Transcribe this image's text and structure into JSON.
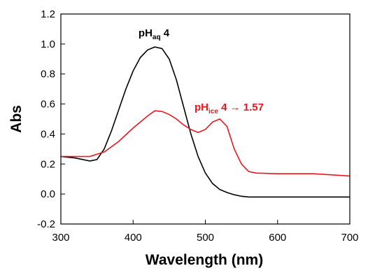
{
  "chart_data": {
    "type": "line",
    "x_label": "Wavelength (nm)",
    "y_label": "Abs",
    "xlim": [
      300,
      700
    ],
    "xticks": [
      300,
      400,
      500,
      600,
      700
    ],
    "ylim": [
      -0.2,
      1.2
    ],
    "yticks": [
      -0.2,
      {
        "value": 0,
        "label": "0.0"
      },
      0.2,
      0.4,
      0.6,
      0.8,
      {
        "value": 1,
        "label": "1.0"
      },
      1.2
    ],
    "series": [
      {
        "color": "#000000",
        "x": [
          300,
          320,
          340,
          350,
          360,
          370,
          380,
          390,
          400,
          410,
          420,
          430,
          440,
          450,
          460,
          470,
          480,
          490,
          500,
          510,
          520,
          530,
          540,
          550,
          560,
          600,
          650,
          700
        ],
        "values": [
          0.25,
          0.24,
          0.22,
          0.23,
          0.3,
          0.42,
          0.56,
          0.7,
          0.82,
          0.91,
          0.96,
          0.98,
          0.97,
          0.9,
          0.76,
          0.58,
          0.4,
          0.25,
          0.14,
          0.07,
          0.03,
          0.01,
          -0.005,
          -0.015,
          -0.02,
          -0.02,
          -0.02,
          -0.02
        ]
      },
      {
        "color": "#e8191f",
        "x": [
          300,
          320,
          340,
          360,
          380,
          400,
          420,
          430,
          440,
          450,
          460,
          470,
          480,
          490,
          500,
          510,
          520,
          530,
          540,
          550,
          560,
          570,
          600,
          650,
          700
        ],
        "values": [
          0.25,
          0.25,
          0.25,
          0.28,
          0.35,
          0.44,
          0.52,
          0.555,
          0.55,
          0.53,
          0.5,
          0.46,
          0.43,
          0.41,
          0.43,
          0.48,
          0.5,
          0.45,
          0.3,
          0.2,
          0.15,
          0.14,
          0.135,
          0.135,
          0.12
        ]
      }
    ],
    "annotations": [
      {
        "parts": [
          "pH",
          "aq",
          " 4"
        ],
        "color": "#000000"
      },
      {
        "parts": [
          "pH",
          "ice",
          " 4 → 1.57"
        ],
        "color": "#e8191f"
      }
    ]
  }
}
